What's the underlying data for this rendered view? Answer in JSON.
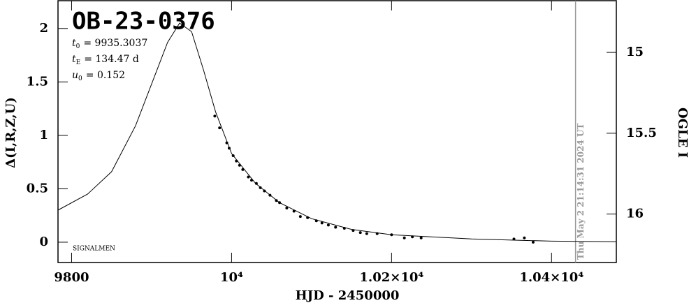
{
  "chart_data": {
    "type": "scatter",
    "title": "OB-23-0376",
    "annotations": [
      {
        "symbol": "t",
        "sub": "0",
        "text": "= 9935.3037"
      },
      {
        "symbol": "t",
        "sub": "E",
        "text": "= 134.47 d"
      },
      {
        "symbol": "u",
        "sub": "0",
        "text": "= 0.152"
      }
    ],
    "footer": "SIGNALMEN",
    "x_label": "HJD - 2450000",
    "y_label": "Δ(I,R,Z,U)",
    "y2_label": "OGLE I",
    "xlim": [
      9783,
      10481
    ],
    "xticks": [
      {
        "value": 9800,
        "label": "9800"
      },
      {
        "value": 10000,
        "label": "10⁴"
      },
      {
        "value": 10200,
        "label": "1.02×10⁴"
      },
      {
        "value": 10400,
        "label": "1.04×10⁴"
      }
    ],
    "ylim": [
      -0.19,
      2.26
    ],
    "yticks": [
      0,
      0.5,
      1,
      1.5,
      2
    ],
    "y2lim": [
      16.3,
      14.68
    ],
    "y2ticks": [
      15,
      15.5,
      16
    ],
    "marker_line": {
      "x": 10430,
      "label": "Thu May  2 21:14:31 2024 UT",
      "color": "#999999"
    },
    "data": {
      "color": "#000000",
      "x": [
        9979,
        9985,
        9994,
        9997,
        10002,
        10006,
        10010,
        10014,
        10021,
        10025,
        10031,
        10036,
        10041,
        10048,
        10056,
        10060,
        10069,
        10078,
        10086,
        10095,
        10106,
        10113,
        10121,
        10130,
        10141,
        10152,
        10161,
        10169,
        10182,
        10200,
        10216,
        10226,
        10237,
        10353,
        10366,
        10377
      ],
      "y": [
        1.18,
        1.07,
        0.93,
        0.88,
        0.81,
        0.76,
        0.72,
        0.68,
        0.61,
        0.58,
        0.55,
        0.51,
        0.48,
        0.44,
        0.39,
        0.37,
        0.32,
        0.29,
        0.24,
        0.23,
        0.2,
        0.18,
        0.16,
        0.14,
        0.13,
        0.11,
        0.09,
        0.08,
        0.08,
        0.07,
        0.04,
        0.05,
        0.04,
        0.03,
        0.04,
        0.0
      ]
    },
    "model": {
      "color": "#000000",
      "x": [
        9783,
        9820,
        9850,
        9880,
        9900,
        9920,
        9935,
        9950,
        9965,
        9980,
        10000,
        10030,
        10060,
        10100,
        10150,
        10200,
        10300,
        10400,
        10481
      ],
      "y": [
        0.3,
        0.45,
        0.66,
        1.09,
        1.48,
        1.87,
        2.05,
        1.97,
        1.61,
        1.22,
        0.83,
        0.55,
        0.37,
        0.22,
        0.12,
        0.07,
        0.03,
        0.01,
        0.005
      ]
    }
  }
}
